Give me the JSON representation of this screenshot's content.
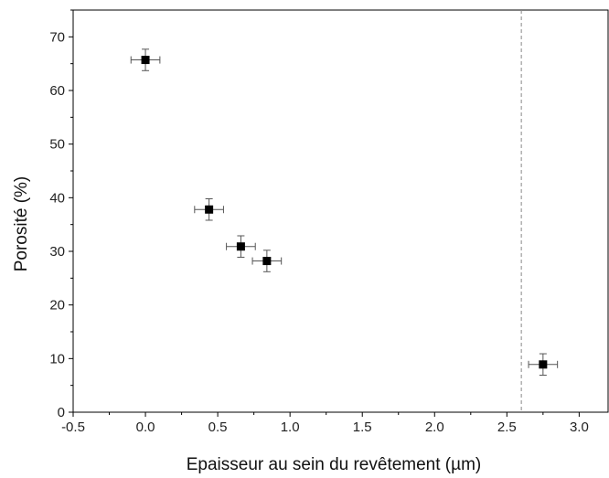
{
  "chart_data": {
    "type": "scatter",
    "title": "",
    "xlabel": "Epaisseur au sein du revêtement (µm)",
    "ylabel": "Porosité (%)",
    "xlim": [
      -0.5,
      3.2
    ],
    "ylim": [
      0,
      75
    ],
    "x_ticks": [
      -0.5,
      0.0,
      0.5,
      1.0,
      1.5,
      2.0,
      2.5,
      3.0
    ],
    "x_tick_labels": [
      "-0.5",
      "0.0",
      "0.5",
      "1.0",
      "1.5",
      "2.0",
      "2.5",
      "3.0"
    ],
    "y_ticks": [
      0,
      10,
      20,
      30,
      40,
      50,
      60,
      70
    ],
    "y_tick_labels": [
      "0",
      "10",
      "20",
      "30",
      "40",
      "50",
      "60",
      "70"
    ],
    "grid": false,
    "legend": "none",
    "marker": "filled-square",
    "marker_color": "#000000",
    "errorbar_color": "#555555",
    "reference_line": {
      "orientation": "vertical",
      "x": 2.6,
      "style": "dashed",
      "color": "#888888"
    },
    "series": [
      {
        "points": [
          {
            "x": 0.0,
            "y": 65.7,
            "xerr": 0.1,
            "yerr": 2.0
          },
          {
            "x": 0.44,
            "y": 37.8,
            "xerr": 0.1,
            "yerr": 2.0
          },
          {
            "x": 0.66,
            "y": 30.9,
            "xerr": 0.1,
            "yerr": 2.0
          },
          {
            "x": 0.84,
            "y": 28.2,
            "xerr": 0.1,
            "yerr": 2.0
          },
          {
            "x": 2.75,
            "y": 8.9,
            "xerr": 0.1,
            "yerr": 2.0
          }
        ]
      }
    ]
  }
}
